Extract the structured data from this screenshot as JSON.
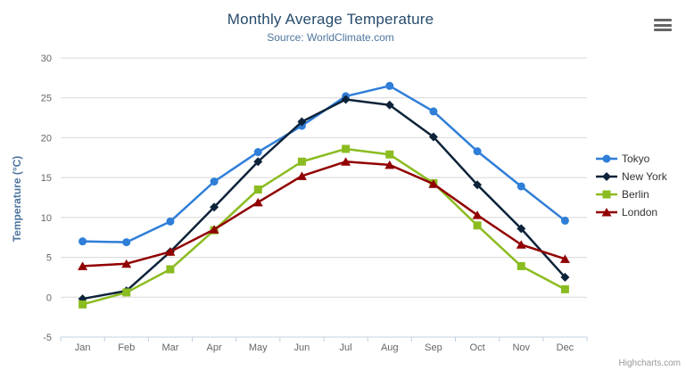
{
  "chart_data": {
    "type": "line",
    "title": "Monthly Average Temperature",
    "subtitle": "Source: WorldClimate.com",
    "xlabel": "",
    "ylabel": "Temperature (°C)",
    "categories": [
      "Jan",
      "Feb",
      "Mar",
      "Apr",
      "May",
      "Jun",
      "Jul",
      "Aug",
      "Sep",
      "Oct",
      "Nov",
      "Dec"
    ],
    "ylim": [
      -5,
      30
    ],
    "ytick_step": 5,
    "grid": true,
    "legend_position": "right",
    "series": [
      {
        "name": "Tokyo",
        "color": "#2f7ed8",
        "marker": "circle",
        "values": [
          7.0,
          6.9,
          9.5,
          14.5,
          18.2,
          21.5,
          25.2,
          26.5,
          23.3,
          18.3,
          13.9,
          9.6
        ]
      },
      {
        "name": "New York",
        "color": "#0d233a",
        "marker": "diamond",
        "values": [
          -0.2,
          0.8,
          5.7,
          11.3,
          17.0,
          22.0,
          24.8,
          24.1,
          20.1,
          14.1,
          8.6,
          2.5
        ]
      },
      {
        "name": "Berlin",
        "color": "#8bbc21",
        "marker": "square",
        "values": [
          -0.9,
          0.6,
          3.5,
          8.4,
          13.5,
          17.0,
          18.6,
          17.9,
          14.3,
          9.0,
          3.9,
          1.0
        ]
      },
      {
        "name": "London",
        "color": "#910000",
        "marker": "triangle",
        "values": [
          3.9,
          4.2,
          5.7,
          8.5,
          11.9,
          15.2,
          17.0,
          16.6,
          14.2,
          10.3,
          6.6,
          4.8
        ]
      }
    ],
    "credit": "Highcharts.com"
  },
  "colors": {
    "title": "#274b6d",
    "subtitle": "#4d759e",
    "y_axis_title": "#4d759e",
    "tick_labels": "#666666",
    "legend_text": "#333333",
    "gridline": "#d8d8d8",
    "axis_line": "#c0d0e0",
    "menu_icon": "#666666",
    "credit_text": "#999999",
    "background": "#ffffff"
  },
  "icons": {
    "context_menu": "hamburger-icon",
    "legend_markers": [
      "circle-marker-icon",
      "diamond-marker-icon",
      "square-marker-icon",
      "triangle-marker-icon"
    ]
  }
}
